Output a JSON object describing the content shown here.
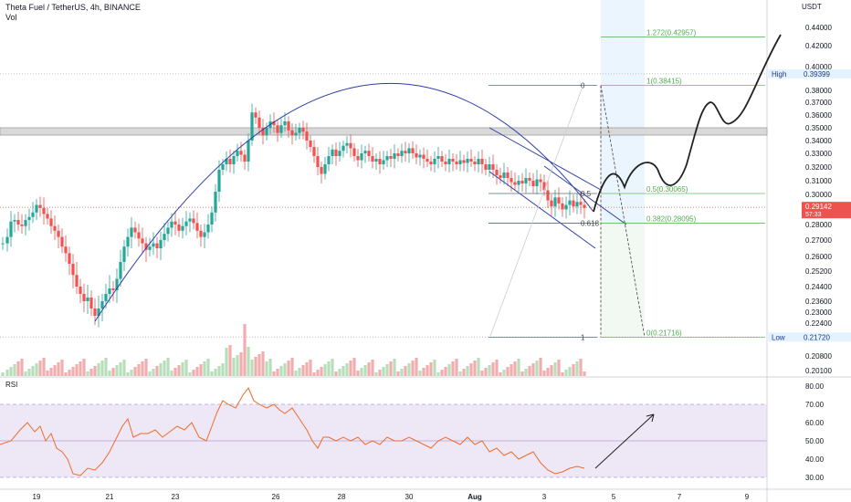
{
  "header": {
    "title": "Theta Fuel / TetherUS, 4h, BINANCE",
    "vol_label": "Vol"
  },
  "price_axis": {
    "currency": "USDT",
    "ticks": [
      {
        "label": "0.44000",
        "value": 0.44
      },
      {
        "label": "0.42000",
        "value": 0.42
      },
      {
        "label": "0.40000",
        "value": 0.4
      },
      {
        "label": "0.38000",
        "value": 0.38
      },
      {
        "label": "0.37000",
        "value": 0.37
      },
      {
        "label": "0.36000",
        "value": 0.36
      },
      {
        "label": "0.35000",
        "value": 0.35
      },
      {
        "label": "0.34000",
        "value": 0.34
      },
      {
        "label": "0.33000",
        "value": 0.33
      },
      {
        "label": "0.32000",
        "value": 0.32
      },
      {
        "label": "0.31000",
        "value": 0.31
      },
      {
        "label": "0.30000",
        "value": 0.3
      },
      {
        "label": "0.28000",
        "value": 0.28
      },
      {
        "label": "0.27000",
        "value": 0.27
      },
      {
        "label": "0.26000",
        "value": 0.26
      },
      {
        "label": "0.25200",
        "value": 0.252
      },
      {
        "label": "0.24400",
        "value": 0.244
      },
      {
        "label": "0.23600",
        "value": 0.236
      },
      {
        "label": "0.23000",
        "value": 0.23
      },
      {
        "label": "0.22400",
        "value": 0.224
      },
      {
        "label": "0.20800",
        "value": 0.208
      },
      {
        "label": "0.20100",
        "value": 0.201
      }
    ],
    "high_label": "High",
    "high_value": "0.39399",
    "low_label": "Low",
    "low_value": "0.21720",
    "current_price": "0.29142",
    "countdown": "57:33"
  },
  "rsi": {
    "label": "RSI",
    "ticks": [
      {
        "label": "80.00",
        "value": 80
      },
      {
        "label": "70.00",
        "value": 70
      },
      {
        "label": "60.00",
        "value": 60
      },
      {
        "label": "50.00",
        "value": 50
      },
      {
        "label": "40.00",
        "value": 40
      },
      {
        "label": "30.00",
        "value": 30
      }
    ]
  },
  "time_axis": {
    "labels": [
      "19",
      "21",
      "23",
      "26",
      "28",
      "30",
      "Aug",
      "3",
      "5",
      "7",
      "9"
    ]
  },
  "fib_left": {
    "levels": [
      {
        "label": "0",
        "value": 0.38415
      },
      {
        "label": "0.5",
        "value": 0.30065
      },
      {
        "label": "0.618",
        "value": 0.28095
      },
      {
        "label": "1",
        "value": 0.21716
      }
    ]
  },
  "fib_right": {
    "levels": [
      {
        "label": "1.272(0.42957)",
        "value": 0.42957
      },
      {
        "label": "1(0.38415)",
        "value": 0.38415
      },
      {
        "label": "0.5(0.30065)",
        "value": 0.30065
      },
      {
        "label": "0.382(0.28095)",
        "value": 0.28095
      },
      {
        "label": "0(0.21716)",
        "value": 0.21716
      }
    ]
  },
  "colors": {
    "up": "#26a69a",
    "down": "#ef5350",
    "fib": "#4caf50",
    "arc": "#2f3ea8",
    "rsi_line": "#ef6c2b",
    "rsi_band": "#ede7f6",
    "current": "#ef5350",
    "high_low": "#1e3a8a"
  },
  "chart_data": {
    "type": "candlestick",
    "title": "Theta Fuel / TetherUS, 4h, BINANCE",
    "x_range": [
      "Jul 18",
      "Aug 10"
    ],
    "y_range": [
      0.199,
      0.445
    ],
    "series": [
      {
        "name": "Vol"
      },
      {
        "name": "RSI"
      }
    ],
    "high": 0.39399,
    "low": 0.2172,
    "last": 0.29142
  }
}
